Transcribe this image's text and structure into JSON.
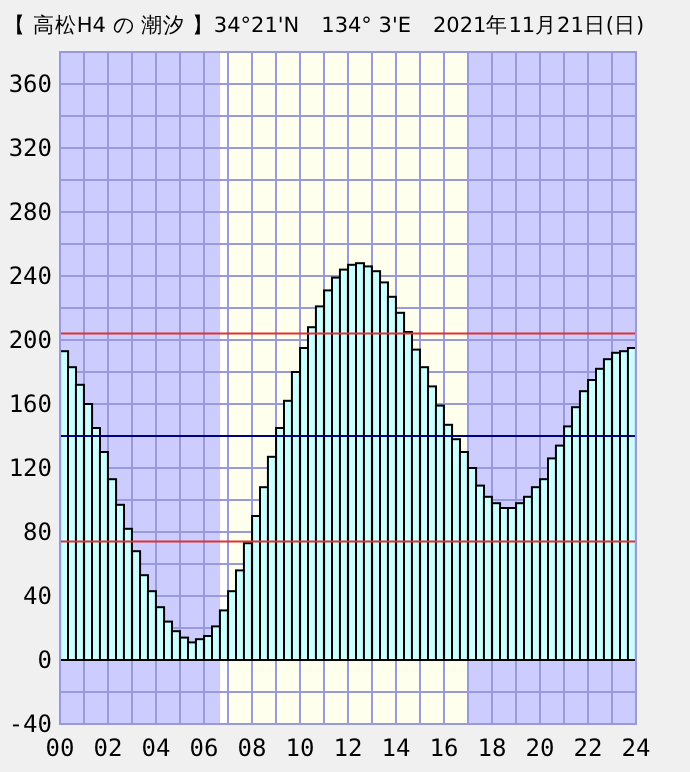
{
  "chart_data": {
    "type": "bar",
    "title": "【 高松H4 の 潮汐 】34°21'N　134° 3'E　2021年11月21日(日)",
    "x": [
      0.17,
      0.5,
      0.83,
      1.17,
      1.5,
      1.83,
      2.17,
      2.5,
      2.83,
      3.17,
      3.5,
      3.83,
      4.17,
      4.5,
      4.83,
      5.17,
      5.5,
      5.83,
      6.17,
      6.5,
      6.83,
      7.17,
      7.5,
      7.83,
      8.17,
      8.5,
      8.83,
      9.17,
      9.5,
      9.83,
      10.17,
      10.5,
      10.83,
      11.17,
      11.5,
      11.83,
      12.17,
      12.5,
      12.83,
      13.17,
      13.5,
      13.83,
      14.17,
      14.5,
      14.83,
      15.17,
      15.5,
      15.83,
      16.17,
      16.5,
      16.83,
      17.17,
      17.5,
      17.83,
      18.17,
      18.5,
      18.83,
      19.17,
      19.5,
      19.83,
      20.17,
      20.5,
      20.83,
      21.17,
      21.5,
      21.83,
      22.17,
      22.5,
      22.83,
      23.17,
      23.5,
      23.83
    ],
    "values": [
      193,
      183,
      172,
      160,
      145,
      130,
      113,
      97,
      82,
      68,
      53,
      43,
      33,
      24,
      18,
      14,
      11,
      13,
      15,
      21,
      31,
      43,
      56,
      73,
      90,
      108,
      127,
      145,
      162,
      180,
      195,
      208,
      221,
      231,
      239,
      244,
      247,
      248,
      246,
      243,
      236,
      227,
      217,
      205,
      194,
      183,
      171,
      159,
      147,
      138,
      130,
      120,
      109,
      102,
      98,
      95,
      95,
      98,
      102,
      108,
      113,
      126,
      134,
      146,
      158,
      168,
      175,
      182,
      188,
      192,
      193,
      195
    ],
    "color": "#ccffff",
    "xlim": [
      0,
      24
    ],
    "ylim": [
      -40,
      380
    ],
    "xticks": [
      {
        "value": 0,
        "label": "00"
      },
      {
        "value": 1,
        "label": null
      },
      {
        "value": 2,
        "label": "02"
      },
      {
        "value": 3,
        "label": null
      },
      {
        "value": 4,
        "label": "04"
      },
      {
        "value": 5,
        "label": null
      },
      {
        "value": 6,
        "label": "06"
      },
      {
        "value": 7,
        "label": null
      },
      {
        "value": 8,
        "label": "08"
      },
      {
        "value": 9,
        "label": null
      },
      {
        "value": 10,
        "label": "10"
      },
      {
        "value": 11,
        "label": null
      },
      {
        "value": 12,
        "label": "12"
      },
      {
        "value": 13,
        "label": null
      },
      {
        "value": 14,
        "label": "14"
      },
      {
        "value": 15,
        "label": null
      },
      {
        "value": 16,
        "label": "16"
      },
      {
        "value": 17,
        "label": null
      },
      {
        "value": 18,
        "label": "18"
      },
      {
        "value": 19,
        "label": null
      },
      {
        "value": 20,
        "label": "20"
      },
      {
        "value": 21,
        "label": null
      },
      {
        "value": 22,
        "label": "22"
      },
      {
        "value": 23,
        "label": null
      },
      {
        "value": 24,
        "label": "24"
      }
    ],
    "yticks": [
      -40,
      {
        "value": -20,
        "label": null
      },
      0,
      {
        "value": 20,
        "label": null
      },
      40,
      {
        "value": 60,
        "label": null
      },
      80,
      {
        "value": 100,
        "label": null
      },
      120,
      {
        "value": 140,
        "label": null
      },
      160,
      {
        "value": 180,
        "label": null
      },
      200,
      {
        "value": 220,
        "label": null
      },
      240,
      {
        "value": 260,
        "label": null
      },
      280,
      {
        "value": 300,
        "label": null
      },
      320,
      {
        "value": 340,
        "label": null
      },
      360,
      {
        "value": 380,
        "label": null
      }
    ],
    "grid": true,
    "bands": [
      {
        "axis": "x",
        "from": 0,
        "to": 6.67,
        "color": "#ccccff"
      },
      {
        "axis": "x",
        "from": 7,
        "to": 17,
        "color": "#ffffee"
      },
      {
        "axis": "x",
        "from": 17,
        "to": 24,
        "color": "#ccccff"
      }
    ],
    "ref_lines": [
      {
        "axis": "y",
        "value": 204,
        "color": "#dd3333"
      },
      {
        "axis": "y",
        "value": 140,
        "color": "#000080"
      },
      {
        "axis": "y",
        "value": 74,
        "color": "#dd3333"
      }
    ]
  }
}
